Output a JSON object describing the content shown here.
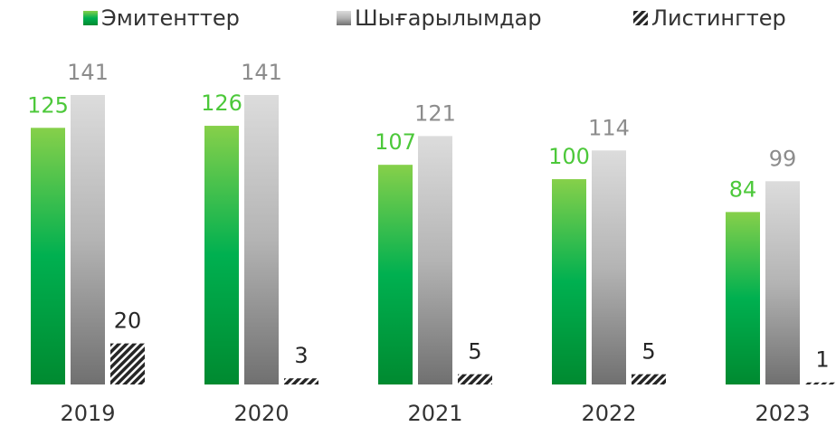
{
  "chart_data": {
    "type": "bar",
    "categories": [
      "2019",
      "2020",
      "2021",
      "2022",
      "2023"
    ],
    "series": [
      {
        "name": "Эмитенттер",
        "color": "#4cc83a",
        "values": [
          125,
          126,
          107,
          100,
          84
        ]
      },
      {
        "name": "Шығарылымдар",
        "color": "#8c8c8c",
        "values": [
          141,
          141,
          121,
          114,
          99
        ]
      },
      {
        "name": "Листингтер",
        "color": "#262626",
        "hatch": true,
        "values": [
          20,
          3,
          5,
          5,
          1
        ]
      }
    ],
    "legend": "top"
  }
}
